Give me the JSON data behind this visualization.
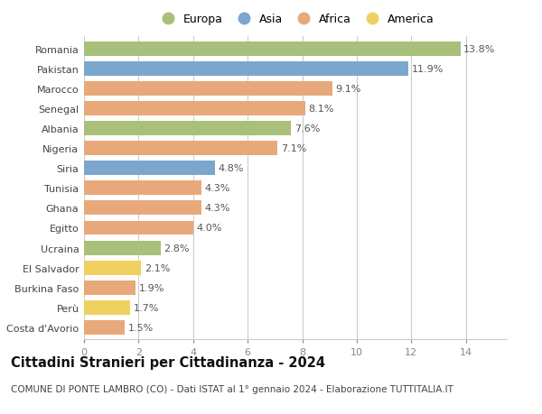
{
  "countries": [
    "Romania",
    "Pakistan",
    "Marocco",
    "Senegal",
    "Albania",
    "Nigeria",
    "Siria",
    "Tunisia",
    "Ghana",
    "Egitto",
    "Ucraina",
    "El Salvador",
    "Burkina Faso",
    "Perù",
    "Costa d'Avorio"
  ],
  "values": [
    13.8,
    11.9,
    9.1,
    8.1,
    7.6,
    7.1,
    4.8,
    4.3,
    4.3,
    4.0,
    2.8,
    2.1,
    1.9,
    1.7,
    1.5
  ],
  "continents": [
    "Europa",
    "Asia",
    "Africa",
    "Africa",
    "Europa",
    "Africa",
    "Asia",
    "Africa",
    "Africa",
    "Africa",
    "Europa",
    "America",
    "Africa",
    "America",
    "Africa"
  ],
  "colors": {
    "Europa": "#a8c07a",
    "Asia": "#7ba7cc",
    "Africa": "#e8a97a",
    "America": "#f0d060"
  },
  "legend_order": [
    "Europa",
    "Asia",
    "Africa",
    "America"
  ],
  "title": "Cittadini Stranieri per Cittadinanza - 2024",
  "subtitle": "COMUNE DI PONTE LAMBRO (CO) - Dati ISTAT al 1° gennaio 2024 - Elaborazione TUTTITALIA.IT",
  "xlim": [
    0,
    15.5
  ],
  "xticks": [
    0,
    2,
    4,
    6,
    8,
    10,
    12,
    14
  ],
  "background_color": "#ffffff",
  "bar_height": 0.72,
  "grid_color": "#cccccc",
  "title_fontsize": 10.5,
  "subtitle_fontsize": 7.5,
  "tick_fontsize": 8,
  "value_fontsize": 8
}
